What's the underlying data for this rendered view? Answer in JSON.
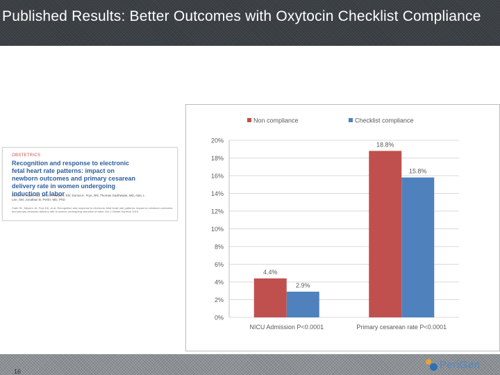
{
  "slide": {
    "title": "Published  Results: Better Outcomes with Oxytocin Checklist Compliance",
    "number": "16",
    "logo_text": "PeriGen"
  },
  "article": {
    "journal": "OBSTETRICS",
    "title": "Recognition and response to electronic fetal heart rate patterns: impact on newborn outcomes and primary cesarean delivery rate in women undergoing induction of labor",
    "authors": "Steven L. Clark, MD; Janet A. Meyers, RN; Donna K. Frye, RN; Thomas Garthwaite, MD; Alan J. Lee, SM; Jonathan B. Perlin, MD, PhD",
    "citation": "Clark SL, Meyers JA, Frye DK, et al. Recognition and response to electronic fetal heart rate patterns: impact on newborn outcomes and primary cesarean delivery rate in women undergoing induction of labor. Am J Obstet Gynecol 2015."
  },
  "colors": {
    "non_compliance": "#c0504d",
    "checklist_compliance": "#4f81bd",
    "grid": "#d9d9d9",
    "axis_text": "#595959"
  },
  "chart_data": {
    "type": "bar",
    "categories": [
      "NICU Admission P<0.0001",
      "Primary cesarean rate P<0.0001"
    ],
    "series": [
      {
        "name": "Non compliance",
        "values": [
          4.4,
          18.8
        ],
        "labels": [
          "4.4%",
          "18.8%"
        ]
      },
      {
        "name": "Checklist compliance",
        "values": [
          2.9,
          15.8
        ],
        "labels": [
          "2.9%",
          "15.8%"
        ]
      }
    ],
    "yticks": [
      "0%",
      "2%",
      "4%",
      "6%",
      "8%",
      "10%",
      "12%",
      "14%",
      "16%",
      "18%",
      "20%"
    ],
    "ylim": [
      0,
      20
    ],
    "title": "",
    "xlabel": "",
    "ylabel": "",
    "legend": "top",
    "grid": true
  }
}
